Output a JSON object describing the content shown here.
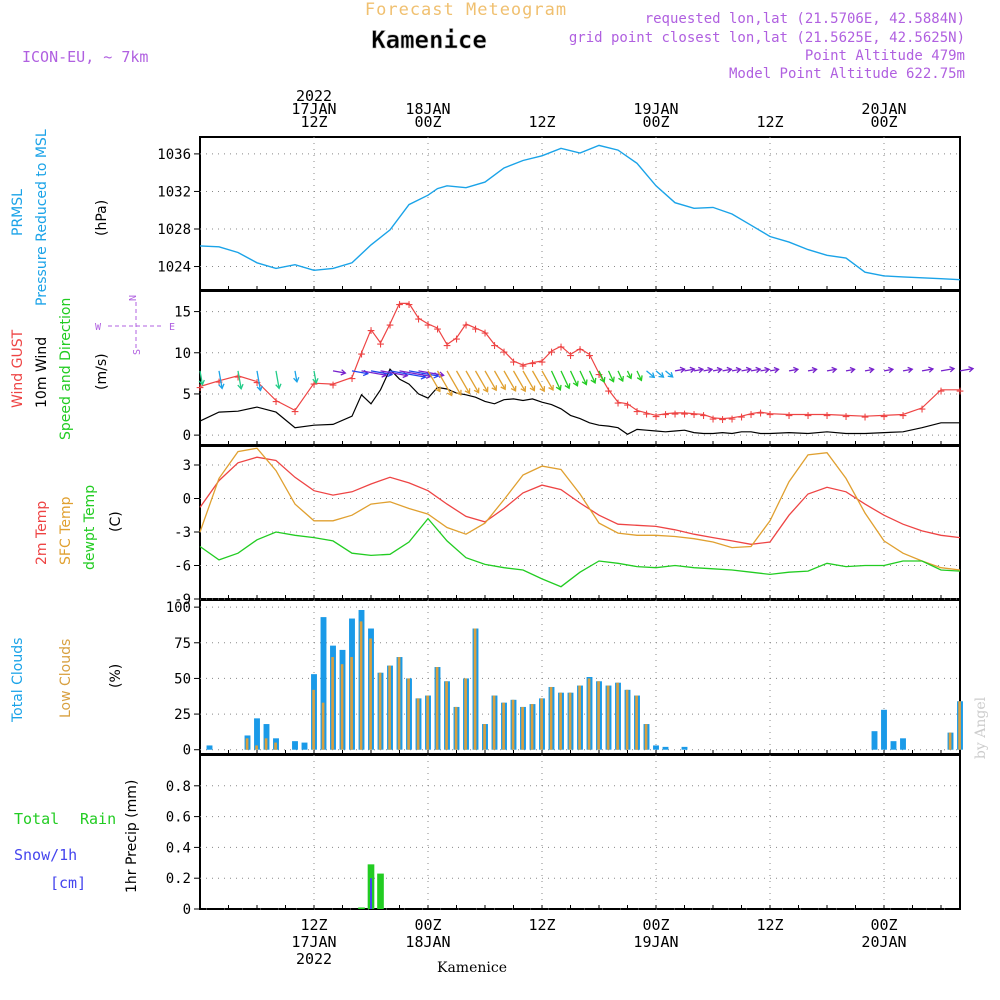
{
  "header": {
    "title": "Forecast Meteogram",
    "location": "Kamenice",
    "model": "ICON-EU, ~ 7km",
    "requested": "requested lon,lat (21.5706E, 42.5884N)",
    "grid_point": "grid point closest lon,lat (21.5625E, 42.5625N)",
    "point_altitude": "Point Altitude 479m",
    "model_altitude": "Model Point Altitude 622.75m",
    "footer_location": "Kamenice",
    "watermark": "by Angel"
  },
  "colors": {
    "pressure": "#1aa3e8",
    "gust": "#ee4444",
    "wind": "#000000",
    "temp": "#ee4444",
    "sfc": "#e0a030",
    "dewpt": "#22cc22",
    "total_clouds": "#1a9ae8",
    "low_clouds": "#d8a040",
    "rain": "#22cc22",
    "snow": "#4444ee",
    "header_orange": "#f0c070",
    "header_purple": "#b060e0"
  },
  "time_axis": {
    "top_labels": [
      {
        "t": 12,
        "lines": [
          "2022",
          "17JAN",
          "12Z"
        ]
      },
      {
        "t": 24,
        "lines": [
          "18JAN",
          "00Z"
        ]
      },
      {
        "t": 36,
        "lines": [
          "12Z"
        ]
      },
      {
        "t": 48,
        "lines": [
          "19JAN",
          "00Z"
        ]
      },
      {
        "t": 60,
        "lines": [
          "12Z"
        ]
      },
      {
        "t": 72,
        "lines": [
          "20JAN",
          "00Z"
        ]
      }
    ],
    "bottom_labels": [
      {
        "t": 12,
        "lines": [
          "12Z",
          "17JAN",
          "2022"
        ]
      },
      {
        "t": 24,
        "lines": [
          "00Z",
          "18JAN"
        ]
      },
      {
        "t": 36,
        "lines": [
          "12Z"
        ]
      },
      {
        "t": 48,
        "lines": [
          "00Z",
          "19JAN"
        ]
      },
      {
        "t": 60,
        "lines": [
          "12Z"
        ]
      },
      {
        "t": 72,
        "lines": [
          "00Z",
          "20JAN"
        ]
      }
    ]
  },
  "panels": {
    "pressure": {
      "label1": "PRMSL",
      "label2": "Pressure Reduced to MSL",
      "unit": "(hPa)"
    },
    "wind": {
      "label_gust": "Wind GUST",
      "label_wind": "10m Wind",
      "label_dir": "Speed and Direction",
      "unit": "(m/s)",
      "compass": {
        "n": "N",
        "s": "S",
        "w": "W",
        "e": "E"
      }
    },
    "temp": {
      "label_temp": "2m Temp",
      "label_sfc": "SFC Temp",
      "label_dewpt": "dewpt Temp",
      "unit": "(C)"
    },
    "clouds": {
      "label_total": "Total Clouds",
      "label_low": "Low Clouds",
      "unit": "(%)"
    },
    "precip": {
      "label_total": "Total",
      "label_rain": "Rain",
      "label_snow": "Snow/1h",
      "label_cm": "[cm]",
      "label_axis": "1hr Precip (mm)"
    }
  },
  "chart_data": [
    {
      "type": "line",
      "name": "pressure",
      "title": "PRMSL Pressure Reduced to MSL",
      "ylabel": "(hPa)",
      "x": [
        0,
        2,
        4,
        6,
        8,
        10,
        12,
        14,
        16,
        18,
        20,
        22,
        24,
        25,
        26,
        28,
        30,
        32,
        34,
        36,
        38,
        40,
        42,
        44,
        46,
        48,
        50,
        52,
        54,
        56,
        58,
        60,
        62,
        64,
        66,
        68,
        70,
        72,
        74,
        76,
        78,
        80
      ],
      "values": [
        1026.2,
        1026.1,
        1025.5,
        1024.4,
        1023.8,
        1024.2,
        1023.6,
        1023.8,
        1024.4,
        1026.3,
        1027.9,
        1030.6,
        1031.6,
        1032.3,
        1032.6,
        1032.4,
        1033.0,
        1034.5,
        1035.3,
        1035.8,
        1036.6,
        1036.1,
        1036.9,
        1036.4,
        1035.0,
        1032.6,
        1030.8,
        1030.2,
        1030.3,
        1029.6,
        1028.4,
        1027.2,
        1026.6,
        1025.8,
        1025.2,
        1024.9,
        1023.4,
        1023.0,
        1022.9,
        1022.8,
        1022.7,
        1022.6
      ],
      "ylim": [
        1021.5,
        1037.8
      ],
      "yticks": [
        1024,
        1028,
        1032,
        1036
      ]
    },
    {
      "type": "line",
      "name": "wind",
      "title": "Wind GUST / 10m Wind Speed and Direction",
      "ylabel": "(m/s)",
      "x": [
        0,
        2,
        4,
        6,
        8,
        10,
        12,
        14,
        16,
        17,
        18,
        19,
        20,
        21,
        22,
        23,
        24,
        25,
        26,
        27,
        28,
        29,
        30,
        31,
        32,
        33,
        34,
        35,
        36,
        37,
        38,
        39,
        40,
        41,
        42,
        43,
        44,
        45,
        46,
        47,
        48,
        49,
        50,
        51,
        52,
        53,
        54,
        55,
        56,
        57,
        58,
        59,
        60,
        62,
        64,
        66,
        68,
        70,
        72,
        74,
        76,
        78,
        80
      ],
      "series": [
        {
          "name": "Wind GUST",
          "values": [
            5.9,
            6.6,
            7.2,
            6.5,
            4.2,
            3.0,
            6.3,
            6.2,
            7.0,
            10.0,
            12.8,
            11.2,
            13.5,
            16.0,
            16.0,
            14.2,
            13.5,
            13.0,
            11.0,
            11.8,
            13.5,
            13.0,
            12.5,
            11.0,
            10.2,
            9.0,
            8.5,
            8.8,
            9.0,
            10.2,
            10.8,
            9.8,
            10.5,
            9.8,
            7.5,
            5.5,
            4.0,
            3.8,
            3.0,
            2.7,
            2.4,
            2.6,
            2.7,
            2.7,
            2.6,
            2.5,
            2.1,
            2.0,
            2.1,
            2.3,
            2.6,
            2.8,
            2.6,
            2.5,
            2.5,
            2.5,
            2.4,
            2.3,
            2.4,
            2.5,
            3.3,
            5.5,
            5.5
          ]
        },
        {
          "name": "10m Wind",
          "values": [
            1.7,
            2.8,
            2.9,
            3.4,
            2.8,
            0.9,
            1.2,
            1.3,
            2.3,
            4.9,
            3.8,
            5.5,
            8.0,
            6.8,
            6.2,
            5.0,
            4.5,
            5.8,
            5.6,
            5.1,
            4.9,
            4.6,
            4.1,
            3.8,
            4.3,
            4.4,
            4.2,
            4.4,
            4.0,
            3.7,
            3.2,
            2.4,
            2.0,
            1.5,
            1.2,
            1.1,
            0.9,
            0.1,
            0.7,
            0.6,
            0.5,
            0.4,
            0.5,
            0.6,
            0.3,
            0.2,
            0.2,
            0.3,
            0.2,
            0.4,
            0.4,
            0.2,
            0.2,
            0.3,
            0.2,
            0.4,
            0.2,
            0.2,
            0.3,
            0.4,
            0.9,
            1.5,
            1.5
          ]
        }
      ],
      "ylim": [
        -1.2,
        17.5
      ],
      "yticks": [
        0,
        5,
        10,
        15
      ]
    },
    {
      "type": "line",
      "name": "temperature",
      "title": "2m Temp / SFC Temp / dewpt Temp",
      "ylabel": "(C)",
      "x": [
        0,
        2,
        4,
        6,
        8,
        10,
        12,
        14,
        16,
        18,
        20,
        22,
        24,
        26,
        28,
        30,
        32,
        34,
        36,
        38,
        40,
        42,
        44,
        46,
        48,
        50,
        52,
        54,
        56,
        58,
        60,
        62,
        64,
        66,
        68,
        70,
        72,
        74,
        76,
        78,
        80
      ],
      "series": [
        {
          "name": "2m Temp",
          "values": [
            -0.8,
            1.6,
            3.2,
            3.7,
            3.4,
            1.9,
            0.7,
            0.3,
            0.6,
            1.3,
            1.9,
            1.4,
            0.7,
            -0.5,
            -1.6,
            -2.1,
            -0.9,
            0.5,
            1.2,
            0.8,
            -0.4,
            -1.5,
            -2.3,
            -2.4,
            -2.5,
            -2.8,
            -3.2,
            -3.5,
            -3.8,
            -4.1,
            -3.9,
            -1.5,
            0.4,
            1.0,
            0.6,
            -0.5,
            -1.5,
            -2.3,
            -2.9,
            -3.3,
            -3.5
          ]
        },
        {
          "name": "SFC Temp",
          "values": [
            -3.0,
            1.8,
            4.2,
            4.5,
            2.5,
            -0.5,
            -2.0,
            -2.0,
            -1.5,
            -0.5,
            -0.3,
            -0.9,
            -1.4,
            -2.6,
            -3.2,
            -2.2,
            -0.1,
            2.1,
            2.9,
            2.6,
            0.4,
            -2.2,
            -3.1,
            -3.3,
            -3.3,
            -3.4,
            -3.6,
            -3.9,
            -4.4,
            -4.3,
            -2.0,
            1.5,
            3.9,
            4.1,
            1.8,
            -1.3,
            -3.8,
            -4.9,
            -5.6,
            -6.2,
            -6.4
          ]
        },
        {
          "name": "dewpt Temp",
          "values": [
            -4.3,
            -5.5,
            -4.9,
            -3.7,
            -3.0,
            -3.3,
            -3.5,
            -3.8,
            -4.9,
            -5.1,
            -5.0,
            -3.9,
            -1.8,
            -3.8,
            -5.3,
            -5.9,
            -6.2,
            -6.4,
            -7.2,
            -7.9,
            -6.6,
            -5.6,
            -5.8,
            -6.1,
            -6.2,
            -6.0,
            -6.2,
            -6.3,
            -6.4,
            -6.6,
            -6.8,
            -6.6,
            -6.5,
            -5.8,
            -6.1,
            -6.0,
            -6.0,
            -5.6,
            -5.6,
            -6.4,
            -6.5
          ]
        }
      ],
      "ylim": [
        -9,
        4.7
      ],
      "yticks": [
        -9,
        -6,
        -3,
        0,
        3
      ]
    },
    {
      "type": "bar",
      "name": "clouds",
      "title": "Total Clouds / Low Clouds",
      "ylabel": "(%)",
      "x": [
        0,
        1,
        2,
        3,
        4,
        5,
        6,
        7,
        8,
        9,
        10,
        11,
        12,
        13,
        14,
        15,
        16,
        17,
        18,
        19,
        20,
        21,
        22,
        23,
        24,
        25,
        26,
        27,
        28,
        29,
        30,
        31,
        32,
        33,
        34,
        35,
        36,
        37,
        38,
        39,
        40,
        41,
        42,
        43,
        44,
        45,
        46,
        47,
        48,
        49,
        50,
        51,
        52,
        53,
        54,
        55,
        56,
        57,
        58,
        59,
        60,
        61,
        62,
        63,
        64,
        65,
        66,
        67,
        68,
        69,
        70,
        71,
        72,
        73,
        74,
        75,
        76,
        77,
        78,
        79,
        80
      ],
      "series": [
        {
          "name": "Total Clouds",
          "values": [
            0,
            3,
            0,
            0,
            0,
            10,
            22,
            18,
            8,
            0,
            6,
            5,
            53,
            93,
            73,
            70,
            92,
            98,
            85,
            54,
            59,
            65,
            50,
            36,
            38,
            58,
            48,
            30,
            50,
            85,
            18,
            38,
            33,
            35,
            30,
            32,
            36,
            44,
            40,
            40,
            45,
            51,
            48,
            45,
            47,
            42,
            38,
            18,
            3,
            2,
            0,
            2,
            0,
            0,
            0,
            0,
            0,
            0,
            0,
            0,
            0,
            0,
            0,
            0,
            0,
            0,
            0,
            0,
            0,
            0,
            0,
            13,
            28,
            6,
            8,
            0,
            0,
            0,
            0,
            12,
            34
          ]
        },
        {
          "name": "Low Clouds",
          "values": [
            0,
            0,
            0,
            0,
            0,
            8,
            3,
            8,
            5,
            0,
            0,
            0,
            42,
            33,
            65,
            60,
            65,
            90,
            78,
            54,
            59,
            65,
            50,
            36,
            38,
            58,
            48,
            30,
            50,
            85,
            18,
            38,
            33,
            35,
            30,
            32,
            36,
            44,
            40,
            40,
            45,
            50,
            48,
            45,
            47,
            42,
            38,
            18,
            0,
            0,
            0,
            0,
            0,
            0,
            0,
            0,
            0,
            0,
            0,
            0,
            0,
            0,
            0,
            0,
            0,
            0,
            0,
            0,
            0,
            0,
            0,
            0,
            0,
            0,
            0,
            0,
            0,
            0,
            0,
            12,
            34
          ]
        }
      ],
      "ylim": [
        -3,
        105
      ],
      "yticks": [
        0,
        25,
        50,
        75,
        100
      ]
    },
    {
      "type": "bar",
      "name": "precip",
      "title": "1hr Precip (mm)",
      "ylabel": "1hr Precip (mm)",
      "x": [
        17,
        18,
        19
      ],
      "series": [
        {
          "name": "Total",
          "values": [
            0.01,
            0.29,
            0.23
          ]
        },
        {
          "name": "Snow/1h",
          "values": [
            0.0,
            0.2,
            0.0
          ]
        }
      ],
      "ylim": [
        0,
        1.0
      ],
      "yticks": [
        0,
        0.2,
        0.4,
        0.6,
        0.8
      ]
    }
  ]
}
